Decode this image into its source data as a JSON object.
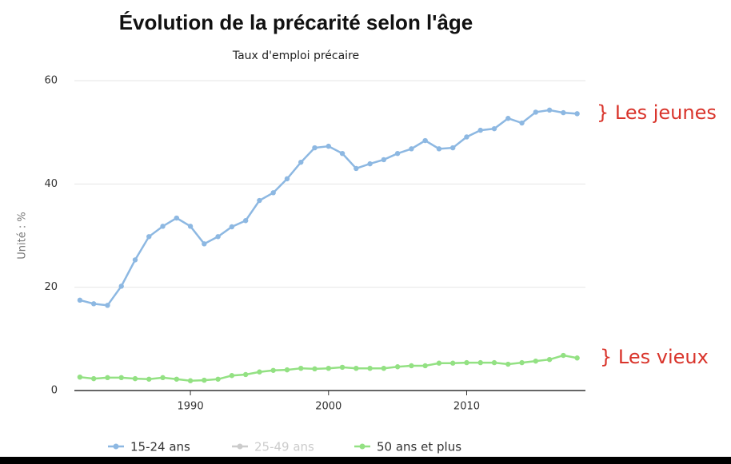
{
  "chart_data": {
    "type": "line",
    "title": "Évolution de la précarité selon l'âge",
    "subtitle": "Taux d'emploi précaire",
    "y_label": "Unité : %",
    "x": [
      1982,
      1983,
      1984,
      1985,
      1986,
      1987,
      1988,
      1989,
      1990,
      1991,
      1992,
      1993,
      1994,
      1995,
      1996,
      1997,
      1998,
      1999,
      2000,
      2001,
      2002,
      2003,
      2004,
      2005,
      2006,
      2007,
      2008,
      2009,
      2010,
      2011,
      2012,
      2013,
      2014,
      2015,
      2016,
      2017,
      2018
    ],
    "series": [
      {
        "name": "15-24 ans",
        "color": "#8db8e2",
        "hidden": false,
        "values": [
          17.5,
          16.8,
          16.5,
          20.2,
          25.3,
          29.8,
          31.8,
          33.4,
          31.8,
          28.4,
          29.8,
          31.7,
          32.9,
          36.8,
          38.3,
          41.0,
          44.2,
          47.0,
          47.3,
          45.9,
          43.0,
          43.9,
          44.7,
          45.9,
          46.8,
          48.4,
          46.8,
          47.0,
          49.1,
          50.4,
          50.7,
          52.7,
          51.8,
          53.9,
          54.3,
          53.8,
          53.6
        ]
      },
      {
        "name": "25-49 ans",
        "color": "#cccccc",
        "hidden": true,
        "values": [
          null,
          null,
          null,
          null,
          null,
          null,
          null,
          null,
          null,
          null,
          null,
          null,
          null,
          null,
          null,
          null,
          null,
          null,
          null,
          null,
          null,
          null,
          null,
          null,
          null,
          null,
          null,
          null,
          null,
          null,
          null,
          null,
          null,
          null,
          null,
          null,
          null
        ]
      },
      {
        "name": "50 ans et plus",
        "color": "#93e183",
        "hidden": false,
        "values": [
          2.6,
          2.3,
          2.5,
          2.5,
          2.3,
          2.2,
          2.5,
          2.2,
          1.9,
          2.0,
          2.2,
          2.9,
          3.1,
          3.6,
          3.9,
          4.0,
          4.3,
          4.2,
          4.3,
          4.5,
          4.3,
          4.3,
          4.3,
          4.6,
          4.8,
          4.8,
          5.3,
          5.3,
          5.4,
          5.4,
          5.4,
          5.1,
          5.4,
          5.7,
          6.0,
          6.8,
          6.3
        ]
      }
    ],
    "xlim": [
      1981.6,
      2018.6
    ],
    "xticks": [
      1990,
      2000,
      2010
    ],
    "ylim": [
      0,
      60
    ],
    "yticks": [
      0,
      20,
      40,
      60
    ],
    "grid": true,
    "annotations": [
      {
        "text": "} Les jeunes",
        "color": "#d9342b"
      },
      {
        "text": "} Les vieux",
        "color": "#d9342b"
      }
    ]
  }
}
